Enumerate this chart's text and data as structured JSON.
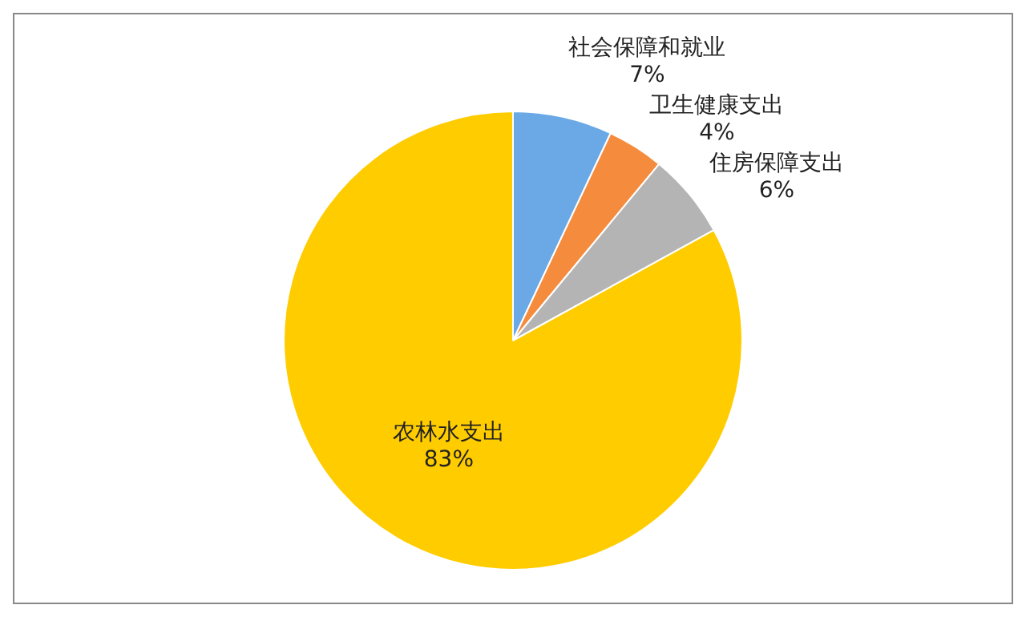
{
  "chart_data": {
    "type": "pie",
    "categories": [
      "社会保障和就业",
      "卫生健康支出",
      "住房保障支出",
      "农林水支出"
    ],
    "values": [
      7,
      4,
      6,
      83
    ],
    "colors": [
      "#6aa9e6",
      "#f58b3c",
      "#b4b4b4",
      "#ffcc00"
    ],
    "value_labels": [
      "7%",
      "4%",
      "6%",
      "83%"
    ],
    "legend": false
  }
}
